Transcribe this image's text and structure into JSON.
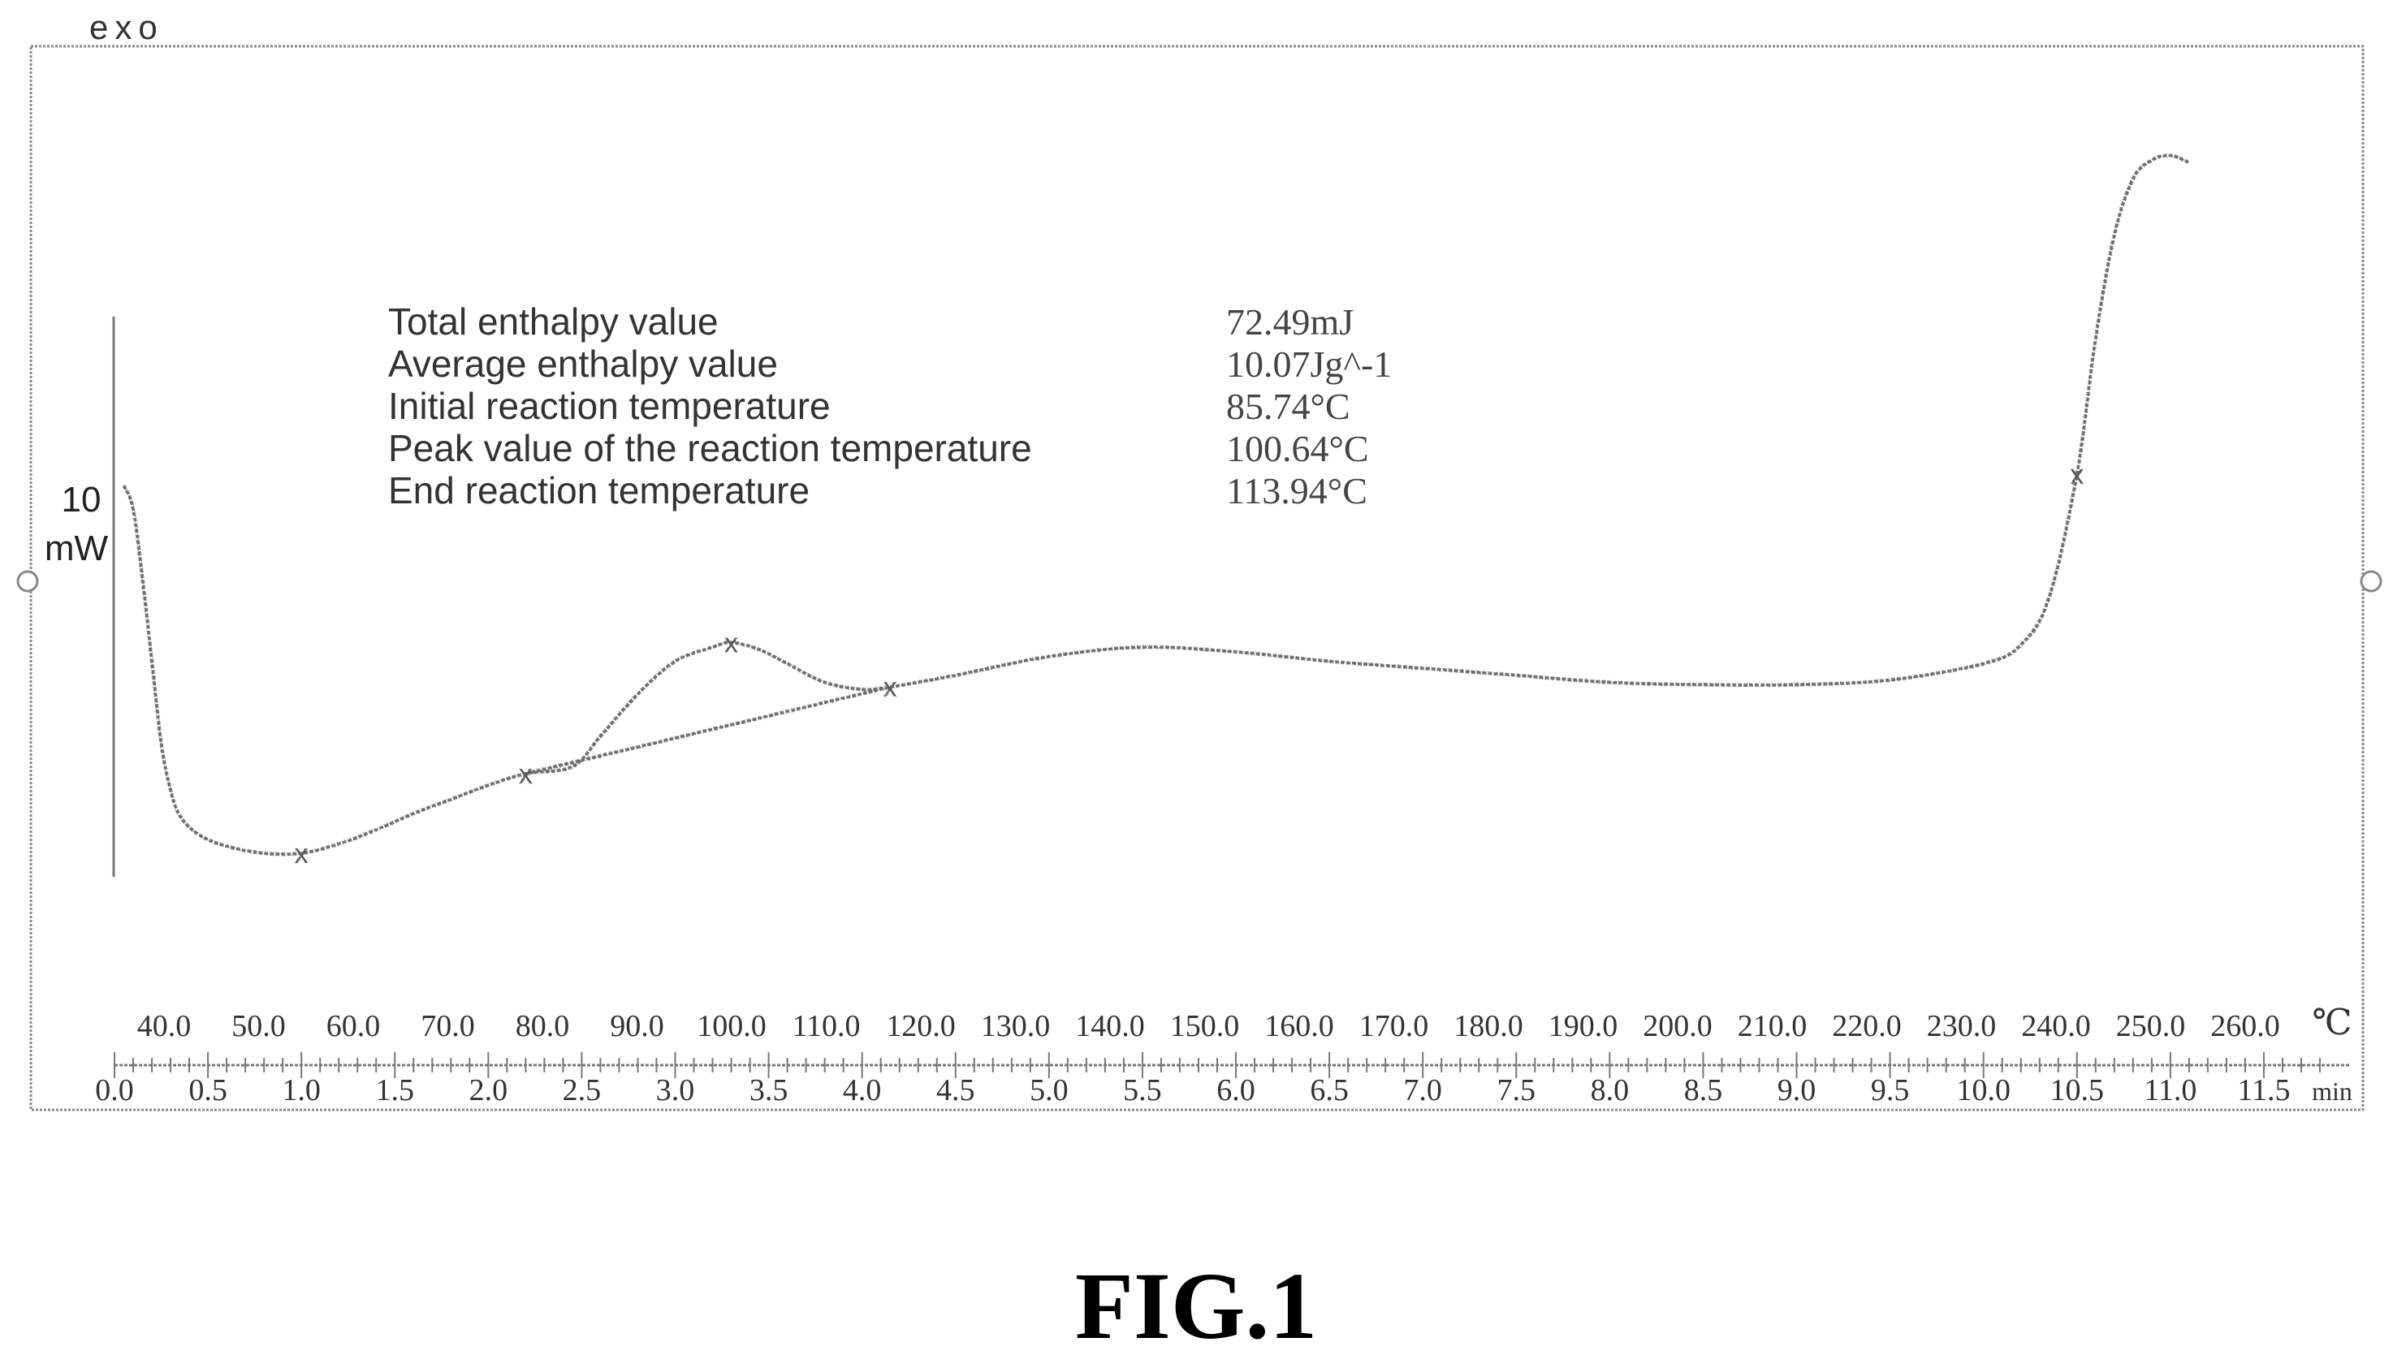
{
  "figure": {
    "exo_label": "exo",
    "scale_value": "10",
    "scale_unit": "mW",
    "caption": "FIG.1",
    "temp_unit": "℃",
    "time_unit": "min"
  },
  "results": [
    {
      "label": "Total enthalpy value",
      "value": "72.49mJ"
    },
    {
      "label": "Average enthalpy value",
      "value": "10.07Jg^-1"
    },
    {
      "label": "Initial reaction temperature",
      "value": "85.74°C"
    },
    {
      "label": "Peak value of the reaction temperature",
      "value": "100.64°C"
    },
    {
      "label": "End reaction temperature",
      "value": "113.94°C"
    }
  ],
  "chart_data": {
    "type": "line",
    "title": "",
    "xlabel": "min",
    "ylabel": "",
    "x_secondary_label": "℃",
    "xlim": [
      0.0,
      11.8
    ],
    "ylim": [
      -17.5,
      17.0
    ],
    "temp_ticks": [
      "40.0",
      "50.0",
      "60.0",
      "70.0",
      "80.0",
      "90.0",
      "100.0",
      "110.0",
      "120.0",
      "130.0",
      "140.0",
      "150.0",
      "160.0",
      "170.0",
      "180.0",
      "190.0",
      "200.0",
      "210.0",
      "220.0",
      "230.0",
      "240.0",
      "250.0",
      "260.0"
    ],
    "time_ticks": [
      "0.0",
      "0.5",
      "1.0",
      "1.5",
      "2.0",
      "2.5",
      "3.0",
      "3.5",
      "4.0",
      "4.5",
      "5.0",
      "5.5",
      "6.0",
      "6.5",
      "7.0",
      "7.5",
      "8.0",
      "8.5",
      "9.0",
      "9.5",
      "10.0",
      "10.5",
      "11.0",
      "11.5"
    ],
    "series": [
      {
        "x": [
          0.05,
          0.1,
          0.15,
          0.2,
          0.25,
          0.3,
          0.35,
          0.45,
          0.6,
          0.8,
          1.0,
          1.2,
          1.4,
          1.6,
          1.8,
          2.0,
          2.2,
          2.45,
          2.6,
          2.8,
          3.0,
          3.2,
          3.3,
          3.45,
          3.6,
          3.8,
          4.0,
          4.15,
          4.5,
          5.0,
          5.5,
          6.0,
          6.5,
          7.0,
          7.5,
          8.0,
          8.5,
          9.0,
          9.5,
          10.0,
          10.2,
          10.35,
          10.5,
          10.6,
          10.7,
          10.8,
          10.9,
          11.0,
          11.1
        ],
        "y": [
          2.5,
          1.5,
          -1.5,
          -5.0,
          -8.5,
          -10.5,
          -11.6,
          -12.4,
          -12.9,
          -13.2,
          -13.2,
          -12.8,
          -12.2,
          -11.5,
          -10.9,
          -10.3,
          -9.8,
          -9.5,
          -8.2,
          -6.4,
          -5.0,
          -4.4,
          -4.2,
          -4.5,
          -5.1,
          -5.9,
          -6.2,
          -6.1,
          -5.6,
          -4.8,
          -4.4,
          -4.6,
          -5.0,
          -5.3,
          -5.6,
          -5.9,
          -6.0,
          -6.0,
          -5.8,
          -5.1,
          -4.3,
          -2.3,
          3.0,
          8.8,
          13.2,
          15.6,
          16.4,
          16.6,
          16.3
        ]
      }
    ],
    "baseline": {
      "x": [
        2.2,
        4.15
      ],
      "y": [
        -9.8,
        -6.1
      ]
    },
    "annotations": [
      {
        "text": "x",
        "x": 1.0
      },
      {
        "text": "x",
        "x": 2.2
      },
      {
        "text": "x",
        "x": 3.3
      },
      {
        "text": "x",
        "x": 4.15
      },
      {
        "text": "x",
        "x": 10.5
      }
    ]
  }
}
